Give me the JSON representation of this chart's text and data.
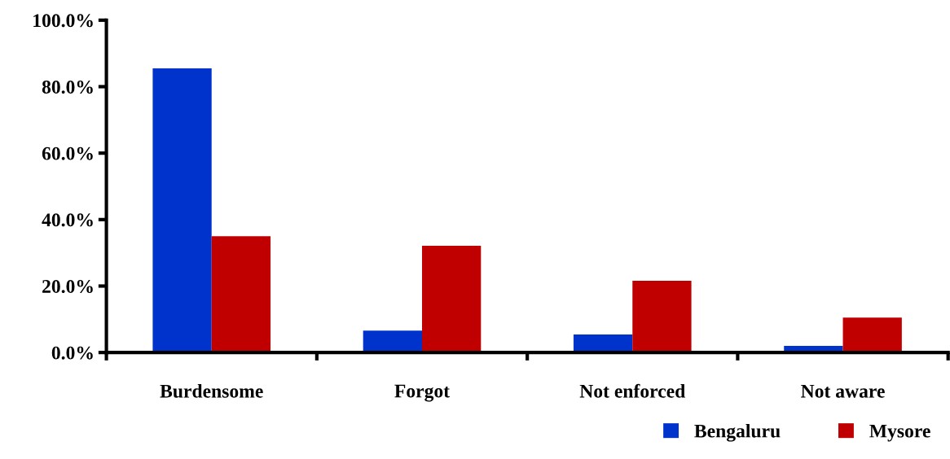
{
  "chart_data": {
    "type": "bar",
    "categories": [
      "Burdensome",
      "Forgot",
      "Not enforced",
      "Not aware"
    ],
    "series": [
      {
        "name": "Bengaluru",
        "color": "#0033cc",
        "values": [
          85.5,
          6.6,
          5.4,
          2.0
        ]
      },
      {
        "name": "Mysore",
        "color": "#c00000",
        "values": [
          35.0,
          32.1,
          21.6,
          10.5
        ]
      }
    ],
    "ylim": [
      0,
      100
    ],
    "yticks": [
      {
        "value": 0,
        "label": "0.0%"
      },
      {
        "value": 20,
        "label": "20.0%"
      },
      {
        "value": 40,
        "label": "40.0%"
      },
      {
        "value": 60,
        "label": "60.0%"
      },
      {
        "value": 80,
        "label": "80.0%"
      },
      {
        "value": 100,
        "label": "100.0%"
      }
    ],
    "grid": false,
    "legend": "bottom right"
  }
}
